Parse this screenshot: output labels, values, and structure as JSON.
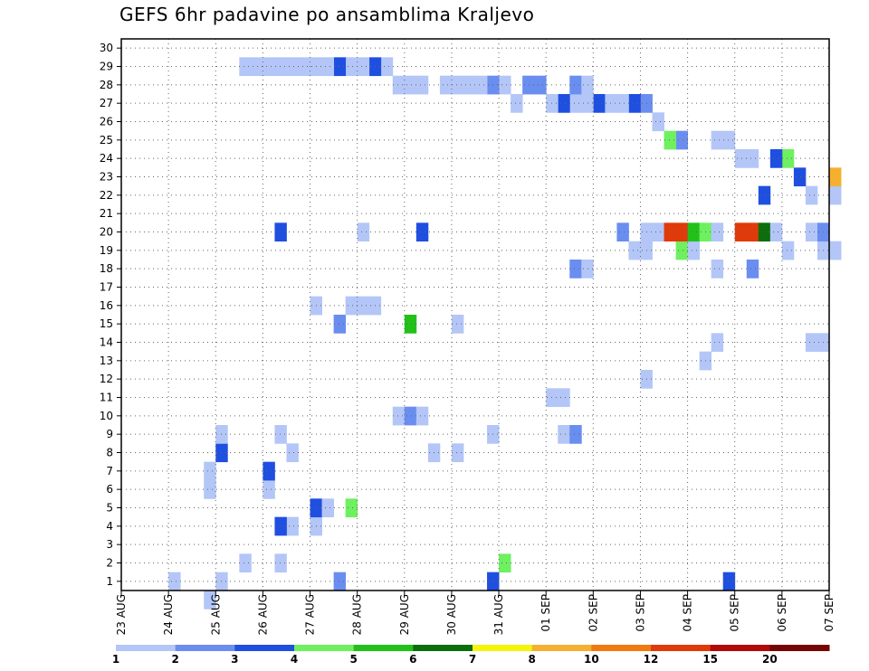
{
  "chart_data": {
    "type": "heatmap",
    "title": "GEFS 6hr padavine po ansamblima Kraljevo",
    "x_tick_labels": [
      "23 AUG",
      "24 AUG",
      "25 AUG",
      "26 AUG",
      "27 AUG",
      "28 AUG",
      "29 AUG",
      "30 AUG",
      "31 AUG",
      "01 SEP",
      "02 SEP",
      "03 SEP",
      "04 SEP",
      "05 SEP",
      "06 SEP",
      "07 SEP"
    ],
    "y_tick_labels": [
      "1",
      "2",
      "3",
      "4",
      "5",
      "6",
      "7",
      "8",
      "9",
      "10",
      "11",
      "12",
      "13",
      "14",
      "15",
      "16",
      "17",
      "18",
      "19",
      "20",
      "21",
      "22",
      "23",
      "24",
      "25",
      "26",
      "27",
      "28",
      "29",
      "30"
    ],
    "x_unit": "6h steps (4 per day)",
    "xlim": [
      0,
      60
    ],
    "ylim": [
      0.5,
      30.5
    ],
    "grid": true,
    "colorbar": {
      "levels": [
        "1",
        "2",
        "3",
        "4",
        "5",
        "6",
        "7",
        "8",
        "10",
        "12",
        "15",
        "20"
      ],
      "colors": [
        "#b3c6f7",
        "#6a8ef0",
        "#1f4fe0",
        "#6ef060",
        "#21c11a",
        "#0c6e0c",
        "#f5f50a",
        "#f5b030",
        "#f07a10",
        "#e03a0a",
        "#b00a0a",
        "#780505"
      ]
    },
    "cells": [
      [
        7,
        0,
        1
      ],
      [
        4,
        1,
        1
      ],
      [
        8,
        1,
        1
      ],
      [
        18,
        1,
        2
      ],
      [
        31,
        1,
        3
      ],
      [
        51,
        1,
        3
      ],
      [
        10,
        2,
        1
      ],
      [
        13,
        2,
        1
      ],
      [
        32,
        2,
        4
      ],
      [
        14,
        4,
        1
      ],
      [
        16,
        4,
        1
      ],
      [
        13,
        4,
        3
      ],
      [
        16,
        5,
        3
      ],
      [
        17,
        5,
        1
      ],
      [
        19,
        5,
        4
      ],
      [
        7,
        6,
        1
      ],
      [
        12,
        6,
        1
      ],
      [
        7,
        7,
        1
      ],
      [
        12,
        7,
        3
      ],
      [
        8,
        8,
        3
      ],
      [
        14,
        8,
        1
      ],
      [
        26,
        8,
        1
      ],
      [
        28,
        8,
        1
      ],
      [
        8,
        9,
        1
      ],
      [
        13,
        9,
        1
      ],
      [
        31,
        9,
        1
      ],
      [
        37,
        9,
        1
      ],
      [
        38,
        9,
        2
      ],
      [
        23,
        10,
        1
      ],
      [
        24,
        10,
        2
      ],
      [
        25,
        10,
        1
      ],
      [
        36,
        11,
        1
      ],
      [
        37,
        11,
        1
      ],
      [
        44,
        12,
        1
      ],
      [
        49,
        13,
        1
      ],
      [
        50,
        14,
        1
      ],
      [
        58,
        14,
        1
      ],
      [
        59,
        14,
        1
      ],
      [
        18,
        15,
        2
      ],
      [
        24,
        15,
        5
      ],
      [
        28,
        15,
        1
      ],
      [
        16,
        16,
        1
      ],
      [
        20,
        16,
        1
      ],
      [
        21,
        16,
        1
      ],
      [
        19,
        16,
        1
      ],
      [
        50,
        18,
        1
      ],
      [
        53,
        18,
        2
      ],
      [
        38,
        18,
        2
      ],
      [
        39,
        18,
        1
      ],
      [
        43,
        19,
        1
      ],
      [
        44,
        19,
        1
      ],
      [
        47,
        19,
        4
      ],
      [
        48,
        19,
        1
      ],
      [
        56,
        19,
        1
      ],
      [
        59,
        19,
        1
      ],
      [
        60,
        19,
        1
      ],
      [
        13,
        20,
        3
      ],
      [
        20,
        20,
        1
      ],
      [
        25,
        20,
        3
      ],
      [
        42,
        20,
        2
      ],
      [
        44,
        20,
        1
      ],
      [
        45,
        20,
        1
      ],
      [
        46,
        20,
        10
      ],
      [
        47,
        20,
        10
      ],
      [
        48,
        20,
        5
      ],
      [
        49,
        20,
        4
      ],
      [
        50,
        20,
        1
      ],
      [
        52,
        20,
        10
      ],
      [
        53,
        20,
        10
      ],
      [
        54,
        20,
        6
      ],
      [
        55,
        20,
        1
      ],
      [
        58,
        20,
        1
      ],
      [
        59,
        20,
        2
      ],
      [
        54,
        22,
        3
      ],
      [
        58,
        22,
        1
      ],
      [
        60,
        22,
        1
      ],
      [
        60,
        23,
        8
      ],
      [
        57,
        23,
        3
      ],
      [
        56,
        24,
        4
      ],
      [
        55,
        24,
        3
      ],
      [
        52,
        24,
        1
      ],
      [
        53,
        24,
        1
      ],
      [
        50,
        25,
        1
      ],
      [
        51,
        25,
        1
      ],
      [
        47,
        25,
        2
      ],
      [
        46,
        25,
        4
      ],
      [
        45,
        26,
        1
      ],
      [
        44,
        27,
        2
      ],
      [
        43,
        27,
        3
      ],
      [
        40,
        27,
        3
      ],
      [
        41,
        27,
        1
      ],
      [
        42,
        27,
        1
      ],
      [
        38,
        27,
        1
      ],
      [
        39,
        27,
        1
      ],
      [
        37,
        27,
        3
      ],
      [
        36,
        27,
        1
      ],
      [
        33,
        27,
        1
      ],
      [
        38,
        28,
        2
      ],
      [
        39,
        28,
        1
      ],
      [
        34,
        28,
        2
      ],
      [
        35,
        28,
        2
      ],
      [
        32,
        28,
        1
      ],
      [
        31,
        28,
        2
      ],
      [
        30,
        28,
        1
      ],
      [
        29,
        28,
        1
      ],
      [
        28,
        28,
        1
      ],
      [
        27,
        28,
        1
      ],
      [
        25,
        28,
        1
      ],
      [
        24,
        28,
        1
      ],
      [
        23,
        28,
        1
      ],
      [
        22,
        29,
        1
      ],
      [
        21,
        29,
        3
      ],
      [
        20,
        29,
        1
      ],
      [
        19,
        29,
        1
      ],
      [
        18,
        29,
        3
      ],
      [
        17,
        29,
        1
      ],
      [
        16,
        29,
        1
      ],
      [
        15,
        29,
        1
      ],
      [
        14,
        29,
        1
      ],
      [
        13,
        29,
        1
      ],
      [
        12,
        29,
        1
      ],
      [
        11,
        29,
        1
      ],
      [
        10,
        29,
        1
      ]
    ]
  }
}
